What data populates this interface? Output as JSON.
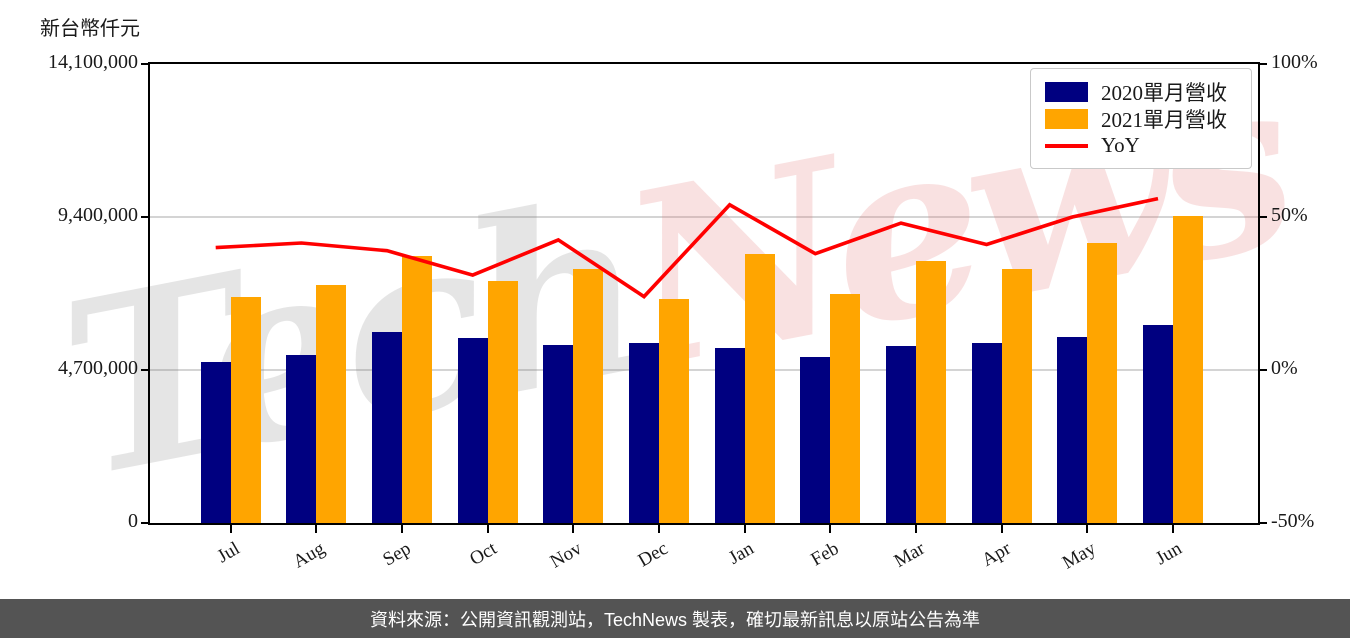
{
  "page": {
    "background": "#ffffff",
    "footer": {
      "text": "資料來源：公開資訊觀測站，TechNews 製表，確切最新訊息以原站公告為準",
      "bg": "#545454",
      "color": "#ffffff"
    }
  },
  "watermark": {
    "part1": "Tech",
    "part2": "News"
  },
  "chart_data": {
    "type": "bar+line",
    "y_axis_title": "新台幣仟元",
    "categories": [
      "Jul",
      "Aug",
      "Sep",
      "Oct",
      "Nov",
      "Dec",
      "Jan",
      "Feb",
      "Mar",
      "Apr",
      "May",
      "Jun"
    ],
    "left_axis": {
      "ticks": [
        0,
        4700000,
        9400000,
        14100000
      ],
      "tick_labels": [
        "0",
        "4,700,000",
        "9,400,000",
        "14,100,000"
      ],
      "min": 0,
      "max": 14100000
    },
    "right_axis": {
      "ticks": [
        -50,
        0,
        50,
        100
      ],
      "tick_labels": [
        "-50%",
        "0%",
        "50%",
        "100%"
      ],
      "min": -50,
      "max": 100
    },
    "series": [
      {
        "name": "2020單月營收",
        "type": "bar",
        "color": "#000080",
        "values": [
          4950000,
          5160000,
          5870000,
          5670000,
          5480000,
          5520000,
          5370000,
          5110000,
          5440000,
          5530000,
          5720000,
          6090000
        ]
      },
      {
        "name": "2021單月營收",
        "type": "bar",
        "color": "#FFA500",
        "values": [
          6940000,
          7310000,
          8200000,
          7430000,
          7800000,
          6870000,
          8270000,
          7030000,
          8050000,
          7800000,
          8610000,
          9420000
        ]
      },
      {
        "name": "YoY",
        "type": "line",
        "color": "#FF0000",
        "unit": "%",
        "values": [
          40,
          41.5,
          39,
          31,
          42.5,
          24,
          54,
          38,
          48,
          41,
          50,
          56
        ]
      }
    ],
    "legend_position": "top-right",
    "grid": "horizontal",
    "grid_color": "#d4d4d4"
  }
}
